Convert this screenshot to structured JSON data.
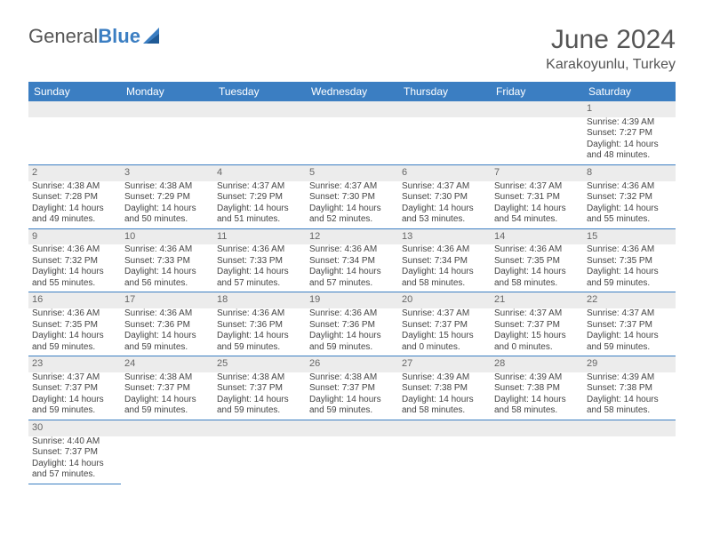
{
  "brand": {
    "part1": "General",
    "part2": "Blue"
  },
  "title": "June 2024",
  "location": "Karakoyunlu, Turkey",
  "colors": {
    "header_bg": "#3b7ec2",
    "header_text": "#ffffff",
    "daynum_bg": "#ececec",
    "border": "#3b7ec2",
    "text": "#444444",
    "logo_blue": "#3b7ec2"
  },
  "day_headers": [
    "Sunday",
    "Monday",
    "Tuesday",
    "Wednesday",
    "Thursday",
    "Friday",
    "Saturday"
  ],
  "weeks": [
    {
      "nums": [
        "",
        "",
        "",
        "",
        "",
        "",
        "1"
      ],
      "cells": [
        null,
        null,
        null,
        null,
        null,
        null,
        {
          "sunrise": "4:39 AM",
          "sunset": "7:27 PM",
          "daylight": "14 hours and 48 minutes."
        }
      ]
    },
    {
      "nums": [
        "2",
        "3",
        "4",
        "5",
        "6",
        "7",
        "8"
      ],
      "cells": [
        {
          "sunrise": "4:38 AM",
          "sunset": "7:28 PM",
          "daylight": "14 hours and 49 minutes."
        },
        {
          "sunrise": "4:38 AM",
          "sunset": "7:29 PM",
          "daylight": "14 hours and 50 minutes."
        },
        {
          "sunrise": "4:37 AM",
          "sunset": "7:29 PM",
          "daylight": "14 hours and 51 minutes."
        },
        {
          "sunrise": "4:37 AM",
          "sunset": "7:30 PM",
          "daylight": "14 hours and 52 minutes."
        },
        {
          "sunrise": "4:37 AM",
          "sunset": "7:30 PM",
          "daylight": "14 hours and 53 minutes."
        },
        {
          "sunrise": "4:37 AM",
          "sunset": "7:31 PM",
          "daylight": "14 hours and 54 minutes."
        },
        {
          "sunrise": "4:36 AM",
          "sunset": "7:32 PM",
          "daylight": "14 hours and 55 minutes."
        }
      ]
    },
    {
      "nums": [
        "9",
        "10",
        "11",
        "12",
        "13",
        "14",
        "15"
      ],
      "cells": [
        {
          "sunrise": "4:36 AM",
          "sunset": "7:32 PM",
          "daylight": "14 hours and 55 minutes."
        },
        {
          "sunrise": "4:36 AM",
          "sunset": "7:33 PM",
          "daylight": "14 hours and 56 minutes."
        },
        {
          "sunrise": "4:36 AM",
          "sunset": "7:33 PM",
          "daylight": "14 hours and 57 minutes."
        },
        {
          "sunrise": "4:36 AM",
          "sunset": "7:34 PM",
          "daylight": "14 hours and 57 minutes."
        },
        {
          "sunrise": "4:36 AM",
          "sunset": "7:34 PM",
          "daylight": "14 hours and 58 minutes."
        },
        {
          "sunrise": "4:36 AM",
          "sunset": "7:35 PM",
          "daylight": "14 hours and 58 minutes."
        },
        {
          "sunrise": "4:36 AM",
          "sunset": "7:35 PM",
          "daylight": "14 hours and 59 minutes."
        }
      ]
    },
    {
      "nums": [
        "16",
        "17",
        "18",
        "19",
        "20",
        "21",
        "22"
      ],
      "cells": [
        {
          "sunrise": "4:36 AM",
          "sunset": "7:35 PM",
          "daylight": "14 hours and 59 minutes."
        },
        {
          "sunrise": "4:36 AM",
          "sunset": "7:36 PM",
          "daylight": "14 hours and 59 minutes."
        },
        {
          "sunrise": "4:36 AM",
          "sunset": "7:36 PM",
          "daylight": "14 hours and 59 minutes."
        },
        {
          "sunrise": "4:36 AM",
          "sunset": "7:36 PM",
          "daylight": "14 hours and 59 minutes."
        },
        {
          "sunrise": "4:37 AM",
          "sunset": "7:37 PM",
          "daylight": "15 hours and 0 minutes."
        },
        {
          "sunrise": "4:37 AM",
          "sunset": "7:37 PM",
          "daylight": "15 hours and 0 minutes."
        },
        {
          "sunrise": "4:37 AM",
          "sunset": "7:37 PM",
          "daylight": "14 hours and 59 minutes."
        }
      ]
    },
    {
      "nums": [
        "23",
        "24",
        "25",
        "26",
        "27",
        "28",
        "29"
      ],
      "cells": [
        {
          "sunrise": "4:37 AM",
          "sunset": "7:37 PM",
          "daylight": "14 hours and 59 minutes."
        },
        {
          "sunrise": "4:38 AM",
          "sunset": "7:37 PM",
          "daylight": "14 hours and 59 minutes."
        },
        {
          "sunrise": "4:38 AM",
          "sunset": "7:37 PM",
          "daylight": "14 hours and 59 minutes."
        },
        {
          "sunrise": "4:38 AM",
          "sunset": "7:37 PM",
          "daylight": "14 hours and 59 minutes."
        },
        {
          "sunrise": "4:39 AM",
          "sunset": "7:38 PM",
          "daylight": "14 hours and 58 minutes."
        },
        {
          "sunrise": "4:39 AM",
          "sunset": "7:38 PM",
          "daylight": "14 hours and 58 minutes."
        },
        {
          "sunrise": "4:39 AM",
          "sunset": "7:38 PM",
          "daylight": "14 hours and 58 minutes."
        }
      ]
    },
    {
      "nums": [
        "30",
        "",
        "",
        "",
        "",
        "",
        ""
      ],
      "cells": [
        {
          "sunrise": "4:40 AM",
          "sunset": "7:37 PM",
          "daylight": "14 hours and 57 minutes."
        },
        null,
        null,
        null,
        null,
        null,
        null
      ]
    }
  ],
  "labels": {
    "sunrise": "Sunrise:",
    "sunset": "Sunset:",
    "daylight": "Daylight:"
  }
}
